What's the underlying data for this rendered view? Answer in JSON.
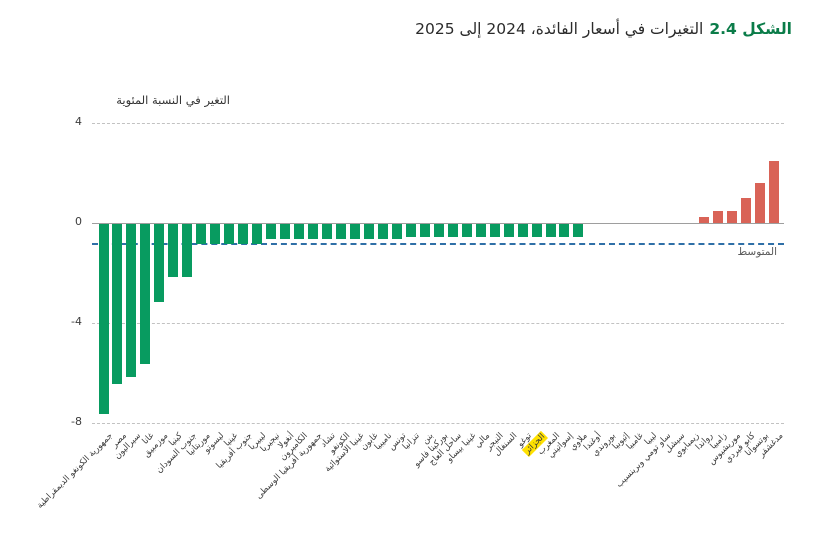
{
  "title": {
    "figure_label": "الشكل 2.4",
    "text": "التغيرات في أسعار الفائدة، 2024 إلى 2025"
  },
  "axis": {
    "y_title": "التغير في النسبة المئوية",
    "ticks": [
      {
        "label": "4",
        "value": 4
      },
      {
        "label": "0",
        "value": 0
      },
      {
        "label": "-4",
        "value": -4
      },
      {
        "label": "-8",
        "value": -8
      }
    ],
    "gridline_values": [
      4,
      -4,
      -8
    ]
  },
  "average": {
    "label": "المتوسط",
    "value": -0.8
  },
  "colors": {
    "bar_negative": "#089b60",
    "bar_positive": "#d96357",
    "figure_label_green": "#0b7c49",
    "average_line_blue": "#2f6fa7",
    "highlight_yellow": "#ffe100",
    "gridline_gray": "#c2c2c2"
  },
  "chart_data": {
    "type": "bar",
    "title": "التغيرات في أسعار الفائدة، 2024 إلى 2025",
    "figure_number": "2.4",
    "xlabel": "",
    "ylabel": "التغير في النسبة المئوية",
    "ylim": [
      -8.4,
      4.4
    ],
    "grid": true,
    "legend_position": "none",
    "average_line": {
      "label": "المتوسط",
      "value": -0.8
    },
    "highlight_category": "الجزائر",
    "categories": [
      "جمهورية الكونغو الديمقراطية",
      "مصر",
      "سيراليون",
      "غانا",
      "موزمبيق",
      "كينيا",
      "جنوب السودان",
      "موريتانيا",
      "ليسوتو",
      "غينيا",
      "جنوب أفريقيا",
      "ليبيريا",
      "نيجيريا",
      "أنغولا",
      "الكاميرون",
      "جمهورية أفريقيا الوسطى",
      "تشاد",
      "الكونغو",
      "غينيا الاستوائية",
      "غابون",
      "ناميبيا",
      "تونس",
      "تنزانيا",
      "بنن",
      "بوركينا فاسو",
      "ساحل العاج",
      "غينيا بيساو",
      "مالي",
      "النيجر",
      "السنغال",
      "توغو",
      "الجزائر",
      "المغرب",
      "إسواتيني",
      "ملاوي",
      "أوغندا",
      "بوروندي",
      "إثيوبيا",
      "غامبيا",
      "ليبيا",
      "ساو تومي وبرينسيب",
      "سيشل",
      "زيمبابوي",
      "رواندا",
      "زامبيا",
      "موريشيوس",
      "كابو فيردي",
      "بوتسوانا",
      "مدغشقر"
    ],
    "values": [
      -7.6,
      -6.4,
      -6.1,
      -5.6,
      -3.1,
      -2.1,
      -2.1,
      -0.8,
      -0.8,
      -0.8,
      -0.8,
      -0.8,
      -0.6,
      -0.6,
      -0.6,
      -0.6,
      -0.6,
      -0.6,
      -0.6,
      -0.6,
      -0.6,
      -0.6,
      -0.5,
      -0.5,
      -0.5,
      -0.5,
      -0.5,
      -0.5,
      -0.5,
      -0.5,
      -0.5,
      -0.5,
      -0.5,
      -0.5,
      -0.5,
      0,
      0,
      0,
      0,
      0,
      0,
      0,
      0,
      0.25,
      0.5,
      0.5,
      1.0,
      1.6,
      2.5
    ]
  }
}
